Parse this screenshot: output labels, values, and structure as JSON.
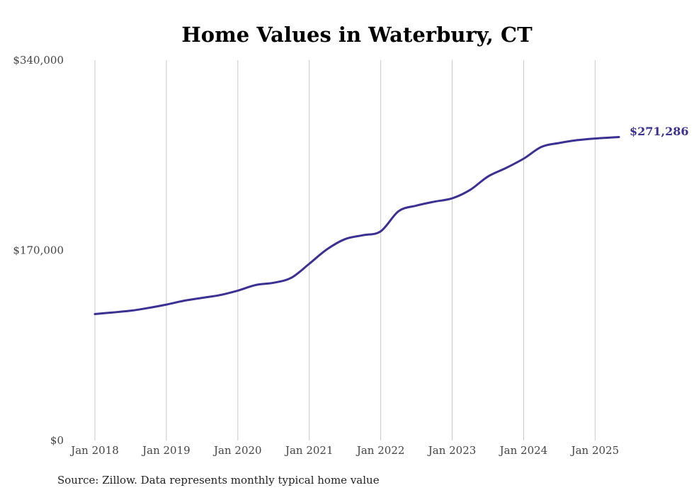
{
  "chart_data": {
    "type": "line",
    "title": "Home Values in Waterbury, CT",
    "source": "Source: Zillow. Data represents monthly typical home value",
    "ylim": [
      0,
      340000
    ],
    "yticks": [
      {
        "value": 0,
        "label": "$0"
      },
      {
        "value": 170000,
        "label": "$170,000"
      },
      {
        "value": 340000,
        "label": "$340,000"
      }
    ],
    "xlim": [
      "2018-01",
      "2025-05"
    ],
    "xticks": [
      {
        "date": "2018-01",
        "label": "Jan 2018"
      },
      {
        "date": "2019-01",
        "label": "Jan 2019"
      },
      {
        "date": "2020-01",
        "label": "Jan 2020"
      },
      {
        "date": "2021-01",
        "label": "Jan 2021"
      },
      {
        "date": "2022-01",
        "label": "Jan 2022"
      },
      {
        "date": "2023-01",
        "label": "Jan 2023"
      },
      {
        "date": "2024-01",
        "label": "Jan 2024"
      },
      {
        "date": "2025-01",
        "label": "Jan 2025"
      }
    ],
    "grid": {
      "vertical": true,
      "horizontal": false
    },
    "line_color": "#3a3192",
    "end_label": "$271,286",
    "series": [
      {
        "x": [
          "2018-01",
          "2018-04",
          "2018-07",
          "2018-10",
          "2019-01",
          "2019-04",
          "2019-07",
          "2019-10",
          "2020-01",
          "2020-04",
          "2020-07",
          "2020-10",
          "2021-01",
          "2021-04",
          "2021-07",
          "2021-10",
          "2022-01",
          "2022-04",
          "2022-07",
          "2022-10",
          "2023-01",
          "2023-04",
          "2023-07",
          "2023-10",
          "2024-01",
          "2024-04",
          "2024-07",
          "2024-10",
          "2025-01",
          "2025-05"
        ],
        "y": [
          113000,
          114500,
          116000,
          118500,
          121500,
          125000,
          127500,
          130000,
          134000,
          139000,
          141000,
          145500,
          158000,
          171000,
          180000,
          183500,
          187000,
          205000,
          210000,
          213500,
          216500,
          224000,
          236000,
          243500,
          252000,
          262500,
          266000,
          268500,
          270000,
          271286
        ]
      }
    ]
  }
}
